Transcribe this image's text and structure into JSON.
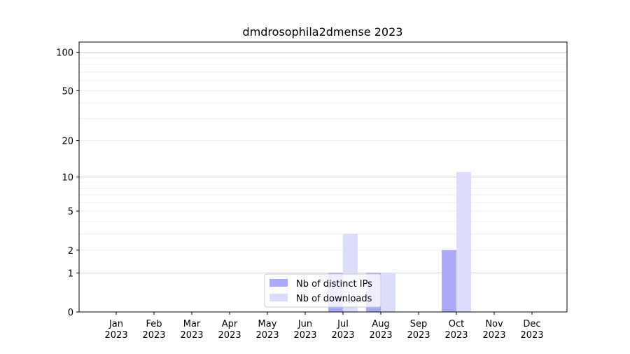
{
  "chart_data": {
    "type": "bar",
    "title": "dmdrosophila2dmense 2023",
    "xlabel": "",
    "ylabel": "",
    "yscale": "log(1+y)",
    "ylim": [
      0,
      120
    ],
    "yticks": [
      0,
      1,
      2,
      5,
      10,
      20,
      50,
      100
    ],
    "categories": [
      {
        "month": "Jan",
        "year": "2023"
      },
      {
        "month": "Feb",
        "year": "2023"
      },
      {
        "month": "Mar",
        "year": "2023"
      },
      {
        "month": "Apr",
        "year": "2023"
      },
      {
        "month": "May",
        "year": "2023"
      },
      {
        "month": "Jun",
        "year": "2023"
      },
      {
        "month": "Jul",
        "year": "2023"
      },
      {
        "month": "Aug",
        "year": "2023"
      },
      {
        "month": "Sep",
        "year": "2023"
      },
      {
        "month": "Oct",
        "year": "2023"
      },
      {
        "month": "Nov",
        "year": "2023"
      },
      {
        "month": "Dec",
        "year": "2023"
      }
    ],
    "series": [
      {
        "name": "Nb of distinct IPs",
        "color": "#aaaaf8",
        "values": [
          0,
          0,
          0,
          0,
          0,
          0,
          1,
          1,
          0,
          2,
          0,
          0
        ]
      },
      {
        "name": "Nb of downloads",
        "color": "#dcdcfb",
        "values": [
          0,
          0,
          0,
          0,
          0,
          0,
          3,
          1,
          0,
          11,
          0,
          0
        ]
      }
    ],
    "grid": true,
    "legend": "bottom-center"
  }
}
